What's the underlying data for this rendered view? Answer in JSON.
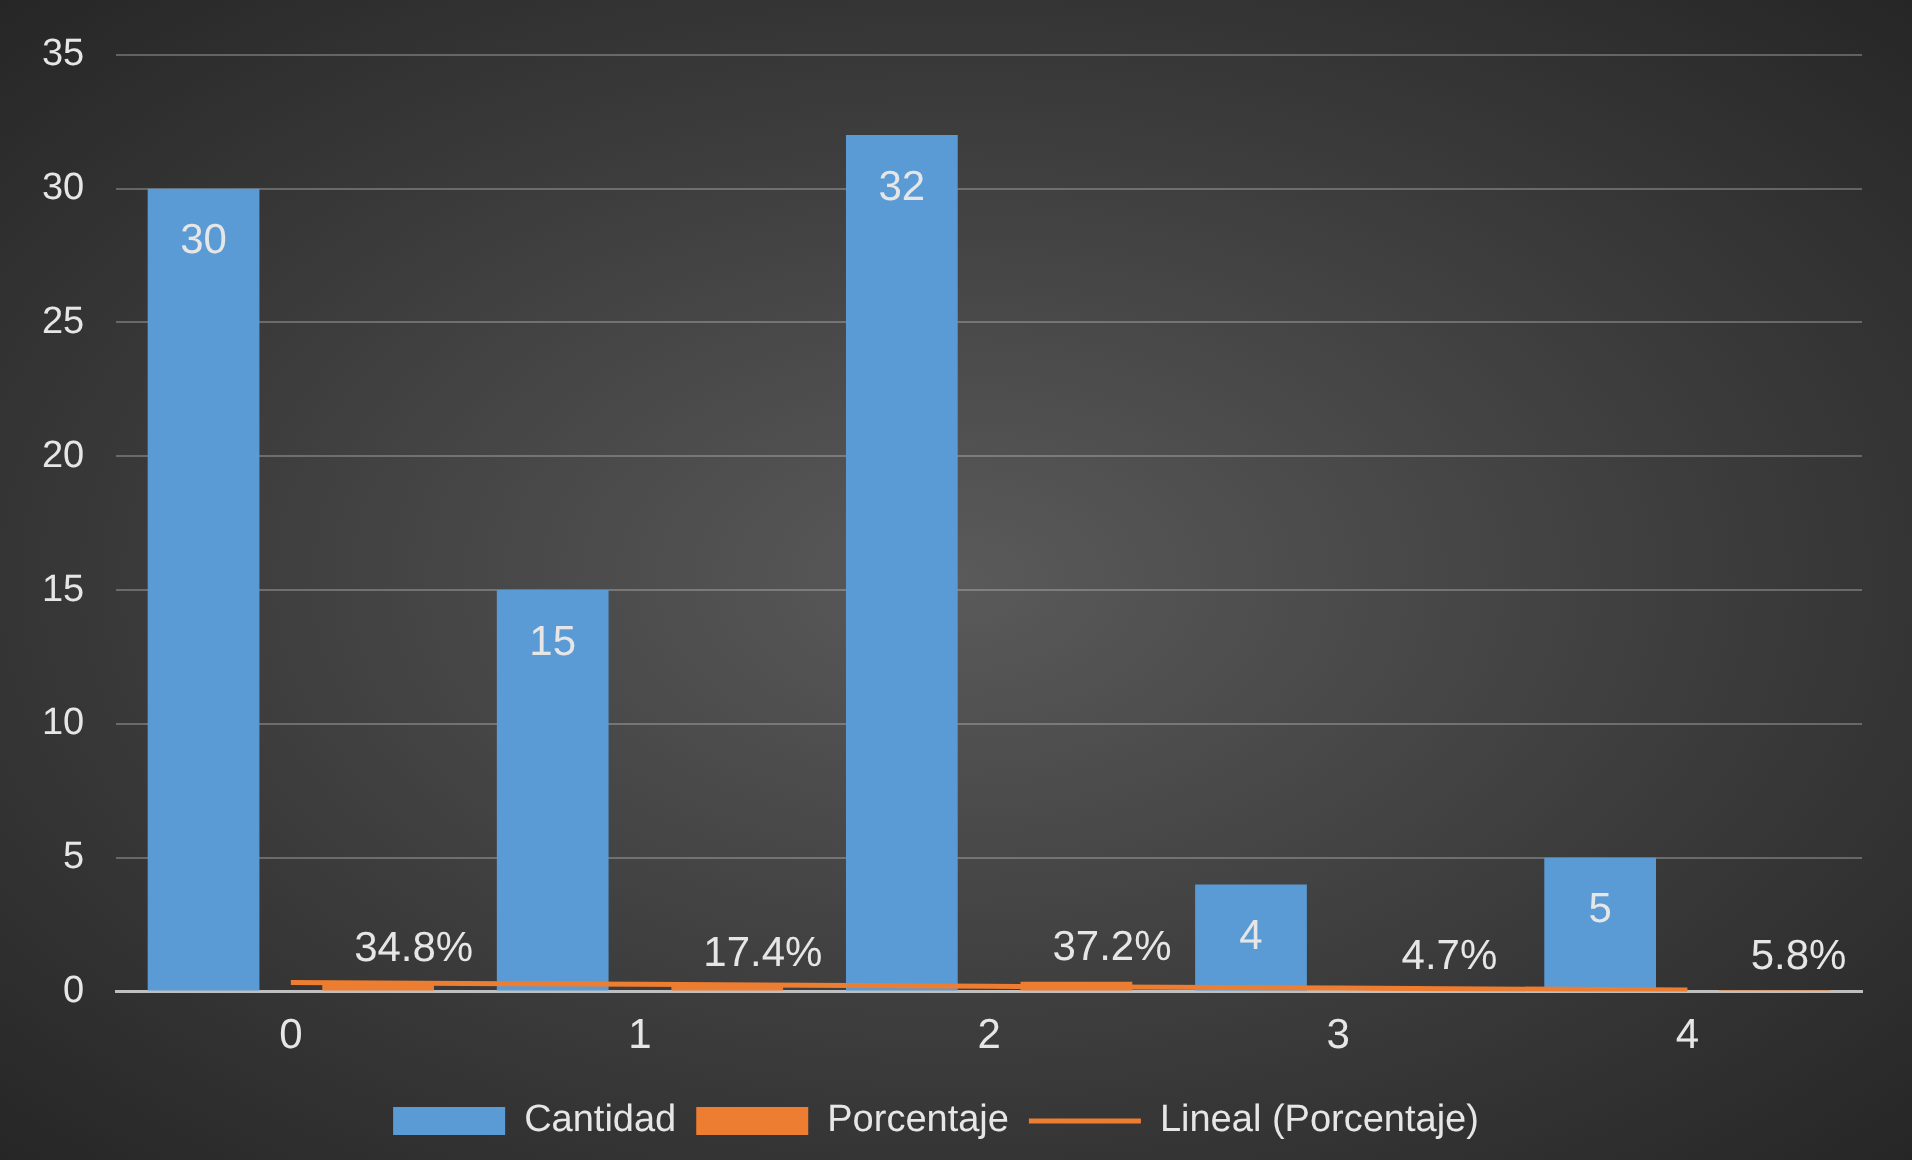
{
  "chart_data": {
    "type": "bar",
    "categories": [
      "0",
      "1",
      "2",
      "3",
      "4"
    ],
    "series": [
      {
        "name": "Cantidad",
        "color": "#5b9bd5",
        "values": [
          30,
          15,
          32,
          4,
          5
        ],
        "value_labels": [
          "30",
          "15",
          "32",
          "4",
          "5"
        ]
      },
      {
        "name": "Porcentaje",
        "color": "#ed7d31",
        "values": [
          0.348,
          0.174,
          0.372,
          0.047,
          0.058
        ],
        "value_labels": [
          "34.8%",
          "17.4%",
          "37.2%",
          "4.7%",
          "5.8%"
        ]
      },
      {
        "name": "Lineal (Porcentaje)",
        "type": "line",
        "color": "#ed7d31",
        "values": [
          0.34,
          0.27,
          0.2,
          0.13,
          0.06
        ]
      }
    ],
    "ylim": [
      0,
      35
    ],
    "yticks": [
      0,
      5,
      10,
      15,
      20,
      25,
      30,
      35
    ],
    "grid": "y",
    "legend": "bottom",
    "marker": "none"
  }
}
